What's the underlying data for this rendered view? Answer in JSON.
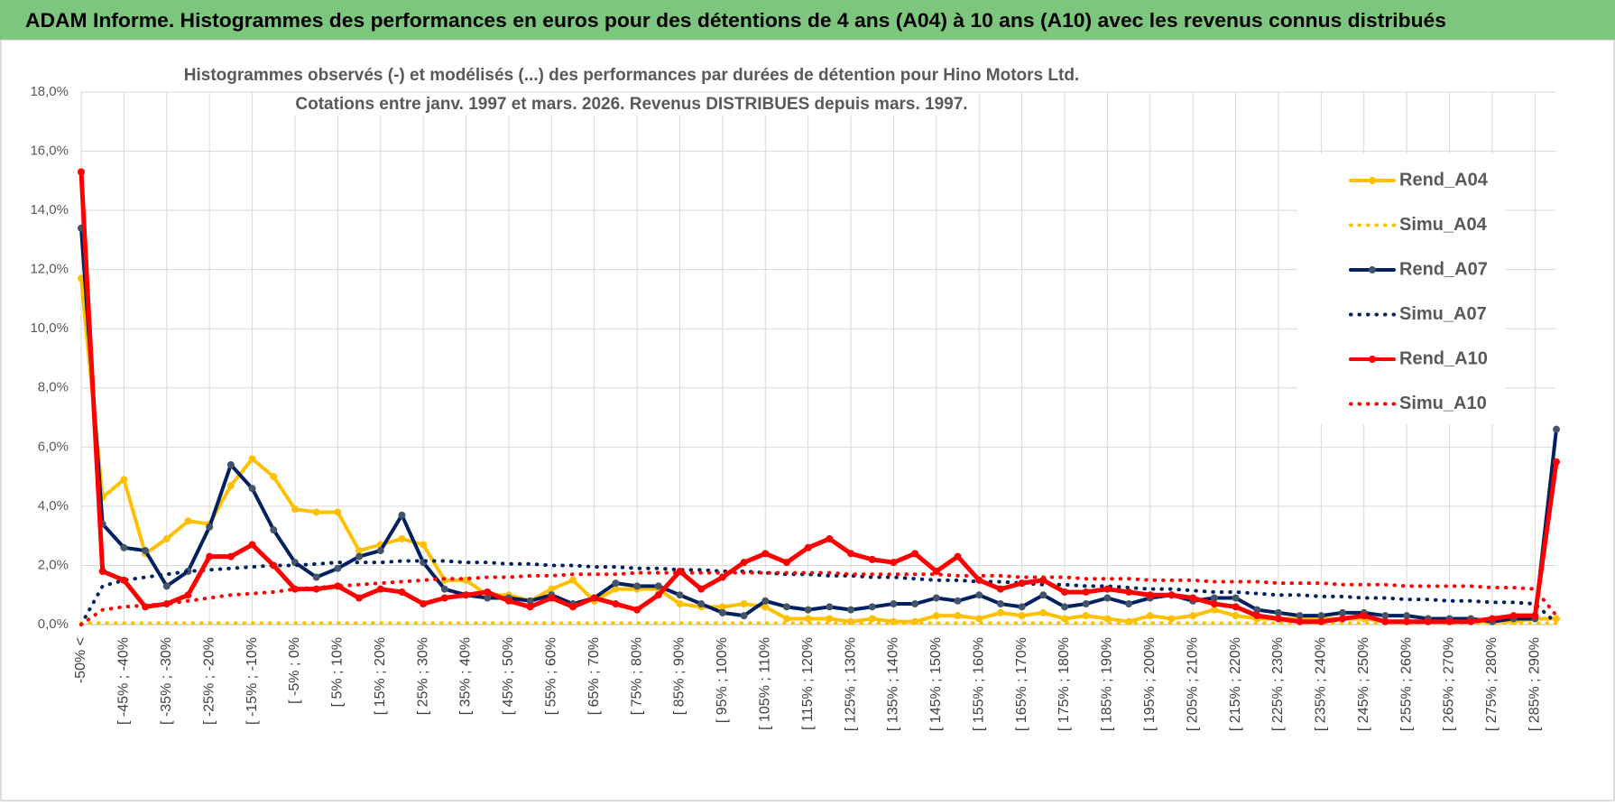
{
  "header": {
    "title": "ADAM Informe. Histogrammes des performances en euros pour des détentions de 4 ans (A04) à 10 ans (A10) avec les revenus connus distribués"
  },
  "chart_data": {
    "type": "line",
    "title": "Histogrammes observés (-) et modélisés (...) des performances par durées de détention pour Hino Motors Ltd.",
    "subtitle": "Cotations entre janv. 1997 et mars. 2026. Revenus DISTRIBUES depuis mars. 1997.",
    "categories": [
      "-50% <",
      null,
      "[ -45% ; -40%",
      null,
      "[ -35% ; -30%",
      null,
      "[ -25% ; -20%",
      null,
      "[ -15% ; -10%",
      null,
      "[ -5% ; 0%",
      null,
      "[ 5% ; 10%",
      null,
      "[ 15% ; 20%",
      null,
      "[ 25% ; 30%",
      null,
      "[ 35% ; 40%",
      null,
      "[ 45% ; 50%",
      null,
      "[ 55% ; 60%",
      null,
      "[ 65% ; 70%",
      null,
      "[ 75% ; 80%",
      null,
      "[ 85% ; 90%",
      null,
      "[ 95% ; 100%",
      null,
      "[ 105% ; 110%",
      null,
      "[ 115% ; 120%",
      null,
      "[ 125% ; 130%",
      null,
      "[ 135% ; 140%",
      null,
      "[ 145% ; 150%",
      null,
      "[ 155% ; 160%",
      null,
      "[ 165% ; 170%",
      null,
      "[ 175% ; 180%",
      null,
      "[ 185% ; 190%",
      null,
      "[ 195% ; 200%",
      null,
      "[ 205% ; 210%",
      null,
      "[ 215% ; 220%",
      null,
      "[ 225% ; 230%",
      null,
      "[ 235% ; 240%",
      null,
      "[ 245% ; 250%",
      null,
      "[ 255% ; 260%",
      null,
      "[ 265% ; 270%",
      null,
      "[ 275% ; 280%",
      null,
      "[ 285% ; 290%",
      null
    ],
    "ylim": [
      0,
      18
    ],
    "yticks": [
      {
        "value": 0,
        "label": "0,0%"
      },
      {
        "value": 2,
        "label": "2,0%"
      },
      {
        "value": 4,
        "label": "4,0%"
      },
      {
        "value": 6,
        "label": "6,0%"
      },
      {
        "value": 8,
        "label": "8,0%"
      },
      {
        "value": 10,
        "label": "10,0%"
      },
      {
        "value": 12,
        "label": "12,0%"
      },
      {
        "value": 14,
        "label": "14,0%"
      },
      {
        "value": 16,
        "label": "16,0%"
      },
      {
        "value": 18,
        "label": "18,0%"
      }
    ],
    "grid": true,
    "legend": "right",
    "series": [
      {
        "name": "Rend_A04",
        "color": "#ffc000",
        "style": "solid",
        "values": [
          11.7,
          4.3,
          4.9,
          2.4,
          2.9,
          3.5,
          3.4,
          4.7,
          5.6,
          5.0,
          3.9,
          3.8,
          3.8,
          2.5,
          2.7,
          2.9,
          2.7,
          1.5,
          1.5,
          1.0,
          1.0,
          0.8,
          1.2,
          1.5,
          0.8,
          1.2,
          1.2,
          1.2,
          0.7,
          0.6,
          0.6,
          0.7,
          0.6,
          0.2,
          0.2,
          0.2,
          0.1,
          0.2,
          0.1,
          0.1,
          0.3,
          0.3,
          0.2,
          0.4,
          0.3,
          0.4,
          0.2,
          0.3,
          0.2,
          0.1,
          0.3,
          0.2,
          0.3,
          0.5,
          0.3,
          0.2,
          0.2,
          0.2,
          0.2,
          0.2,
          0.2,
          0.1,
          0.1,
          0.1,
          0.1,
          0.1,
          0.1,
          0.1,
          0.2,
          0.2
        ]
      },
      {
        "name": "Simu_A04",
        "color": "#ffc000",
        "style": "dotted",
        "values": [
          0.05,
          0.05,
          0.05,
          0.05,
          0.05,
          0.05,
          0.05,
          0.05,
          0.05,
          0.05,
          0.05,
          0.05,
          0.05,
          0.05,
          0.05,
          0.05,
          0.05,
          0.05,
          0.05,
          0.05,
          0.05,
          0.05,
          0.05,
          0.05,
          0.05,
          0.05,
          0.05,
          0.05,
          0.05,
          0.05,
          0.05,
          0.05,
          0.05,
          0.05,
          0.05,
          0.05,
          0.05,
          0.05,
          0.05,
          0.05,
          0.05,
          0.05,
          0.05,
          0.05,
          0.05,
          0.05,
          0.05,
          0.05,
          0.05,
          0.05,
          0.05,
          0.05,
          0.05,
          0.05,
          0.05,
          0.05,
          0.05,
          0.05,
          0.05,
          0.05,
          0.05,
          0.05,
          0.05,
          0.05,
          0.05,
          0.05,
          0.05,
          0.05,
          0.05,
          0.05
        ]
      },
      {
        "name": "Rend_A07",
        "color": "#002060",
        "style": "solid",
        "values": [
          13.4,
          3.4,
          2.6,
          2.5,
          1.3,
          1.8,
          3.3,
          5.4,
          4.6,
          3.2,
          2.1,
          1.6,
          1.9,
          2.3,
          2.5,
          3.7,
          2.1,
          1.2,
          1.0,
          0.9,
          0.9,
          0.8,
          1.0,
          0.7,
          0.9,
          1.4,
          1.3,
          1.3,
          1.0,
          0.7,
          0.4,
          0.3,
          0.8,
          0.6,
          0.5,
          0.6,
          0.5,
          0.6,
          0.7,
          0.7,
          0.9,
          0.8,
          1.0,
          0.7,
          0.6,
          1.0,
          0.6,
          0.7,
          0.9,
          0.7,
          0.9,
          1.0,
          0.8,
          0.9,
          0.9,
          0.5,
          0.4,
          0.3,
          0.3,
          0.4,
          0.4,
          0.3,
          0.3,
          0.2,
          0.2,
          0.2,
          0.1,
          0.2,
          0.2,
          6.6
        ]
      },
      {
        "name": "Simu_A07",
        "color": "#002060",
        "style": "dotted",
        "values": [
          0.0,
          1.3,
          1.5,
          1.6,
          1.7,
          1.8,
          1.85,
          1.9,
          1.95,
          2.0,
          2.0,
          2.05,
          2.1,
          2.1,
          2.1,
          2.15,
          2.15,
          2.15,
          2.1,
          2.1,
          2.05,
          2.05,
          2.0,
          2.0,
          1.95,
          1.95,
          1.9,
          1.9,
          1.85,
          1.85,
          1.8,
          1.8,
          1.75,
          1.7,
          1.7,
          1.65,
          1.65,
          1.6,
          1.6,
          1.55,
          1.5,
          1.5,
          1.45,
          1.45,
          1.4,
          1.35,
          1.35,
          1.3,
          1.3,
          1.25,
          1.2,
          1.2,
          1.15,
          1.1,
          1.1,
          1.05,
          1.0,
          1.0,
          0.95,
          0.95,
          0.9,
          0.9,
          0.85,
          0.85,
          0.8,
          0.8,
          0.75,
          0.75,
          0.7,
          0.05
        ]
      },
      {
        "name": "Rend_A10",
        "color": "#ff0000",
        "style": "solid",
        "values": [
          15.3,
          1.8,
          1.5,
          0.6,
          0.7,
          1.0,
          2.3,
          2.3,
          2.7,
          2.0,
          1.2,
          1.2,
          1.3,
          0.9,
          1.2,
          1.1,
          0.7,
          0.9,
          1.0,
          1.1,
          0.8,
          0.6,
          0.9,
          0.6,
          0.9,
          0.7,
          0.5,
          1.0,
          1.8,
          1.2,
          1.6,
          2.1,
          2.4,
          2.1,
          2.6,
          2.9,
          2.4,
          2.2,
          2.1,
          2.4,
          1.8,
          2.3,
          1.5,
          1.2,
          1.4,
          1.5,
          1.1,
          1.1,
          1.2,
          1.1,
          1.0,
          1.0,
          0.9,
          0.7,
          0.6,
          0.3,
          0.2,
          0.1,
          0.1,
          0.2,
          0.3,
          0.1,
          0.1,
          0.1,
          0.1,
          0.1,
          0.2,
          0.3,
          0.3,
          5.5
        ]
      },
      {
        "name": "Simu_A10",
        "color": "#ff0000",
        "style": "dotted",
        "values": [
          0.0,
          0.5,
          0.6,
          0.65,
          0.7,
          0.8,
          0.9,
          1.0,
          1.05,
          1.1,
          1.2,
          1.25,
          1.3,
          1.35,
          1.4,
          1.45,
          1.5,
          1.55,
          1.55,
          1.6,
          1.6,
          1.65,
          1.65,
          1.7,
          1.7,
          1.7,
          1.75,
          1.75,
          1.75,
          1.75,
          1.75,
          1.75,
          1.75,
          1.75,
          1.75,
          1.75,
          1.7,
          1.7,
          1.7,
          1.7,
          1.7,
          1.65,
          1.65,
          1.65,
          1.6,
          1.6,
          1.6,
          1.55,
          1.55,
          1.55,
          1.5,
          1.5,
          1.5,
          1.45,
          1.45,
          1.45,
          1.4,
          1.4,
          1.4,
          1.35,
          1.35,
          1.35,
          1.3,
          1.3,
          1.3,
          1.3,
          1.25,
          1.25,
          1.2,
          0.3
        ]
      }
    ]
  }
}
